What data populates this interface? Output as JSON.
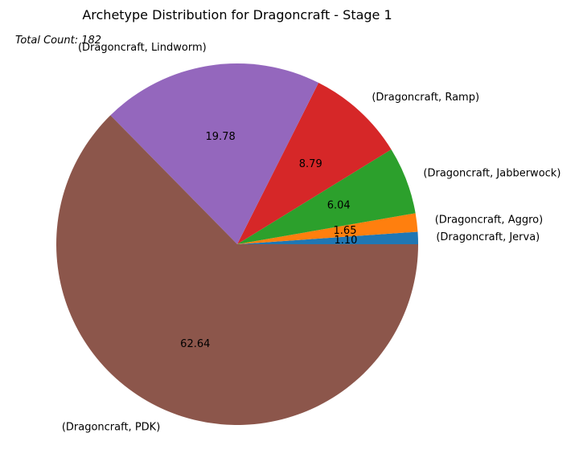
{
  "chart_data": {
    "type": "pie",
    "title": "Archetype Distribution for Dragoncraft - Stage 1",
    "annotation": "Total Count: 182",
    "total": 182,
    "slices": [
      {
        "label": "(Dragoncraft, Jerva)",
        "value": 1.1,
        "pct_label": "1.10",
        "color": "#1f77b4"
      },
      {
        "label": "(Dragoncraft, Aggro)",
        "value": 1.65,
        "pct_label": "1.65",
        "color": "#ff7f0e"
      },
      {
        "label": "(Dragoncraft, Jabberwock)",
        "value": 6.04,
        "pct_label": "6.04",
        "color": "#2ca02c"
      },
      {
        "label": "(Dragoncraft, Ramp)",
        "value": 8.79,
        "pct_label": "8.79",
        "color": "#d62728"
      },
      {
        "label": "(Dragoncraft, Lindworm)",
        "value": 19.78,
        "pct_label": "19.78",
        "color": "#9467bd"
      },
      {
        "label": "(Dragoncraft, PDK)",
        "value": 62.64,
        "pct_label": "62.64",
        "color": "#8c564b"
      }
    ],
    "start_angle_deg": 0,
    "direction": "counterclockwise",
    "legend": false
  }
}
